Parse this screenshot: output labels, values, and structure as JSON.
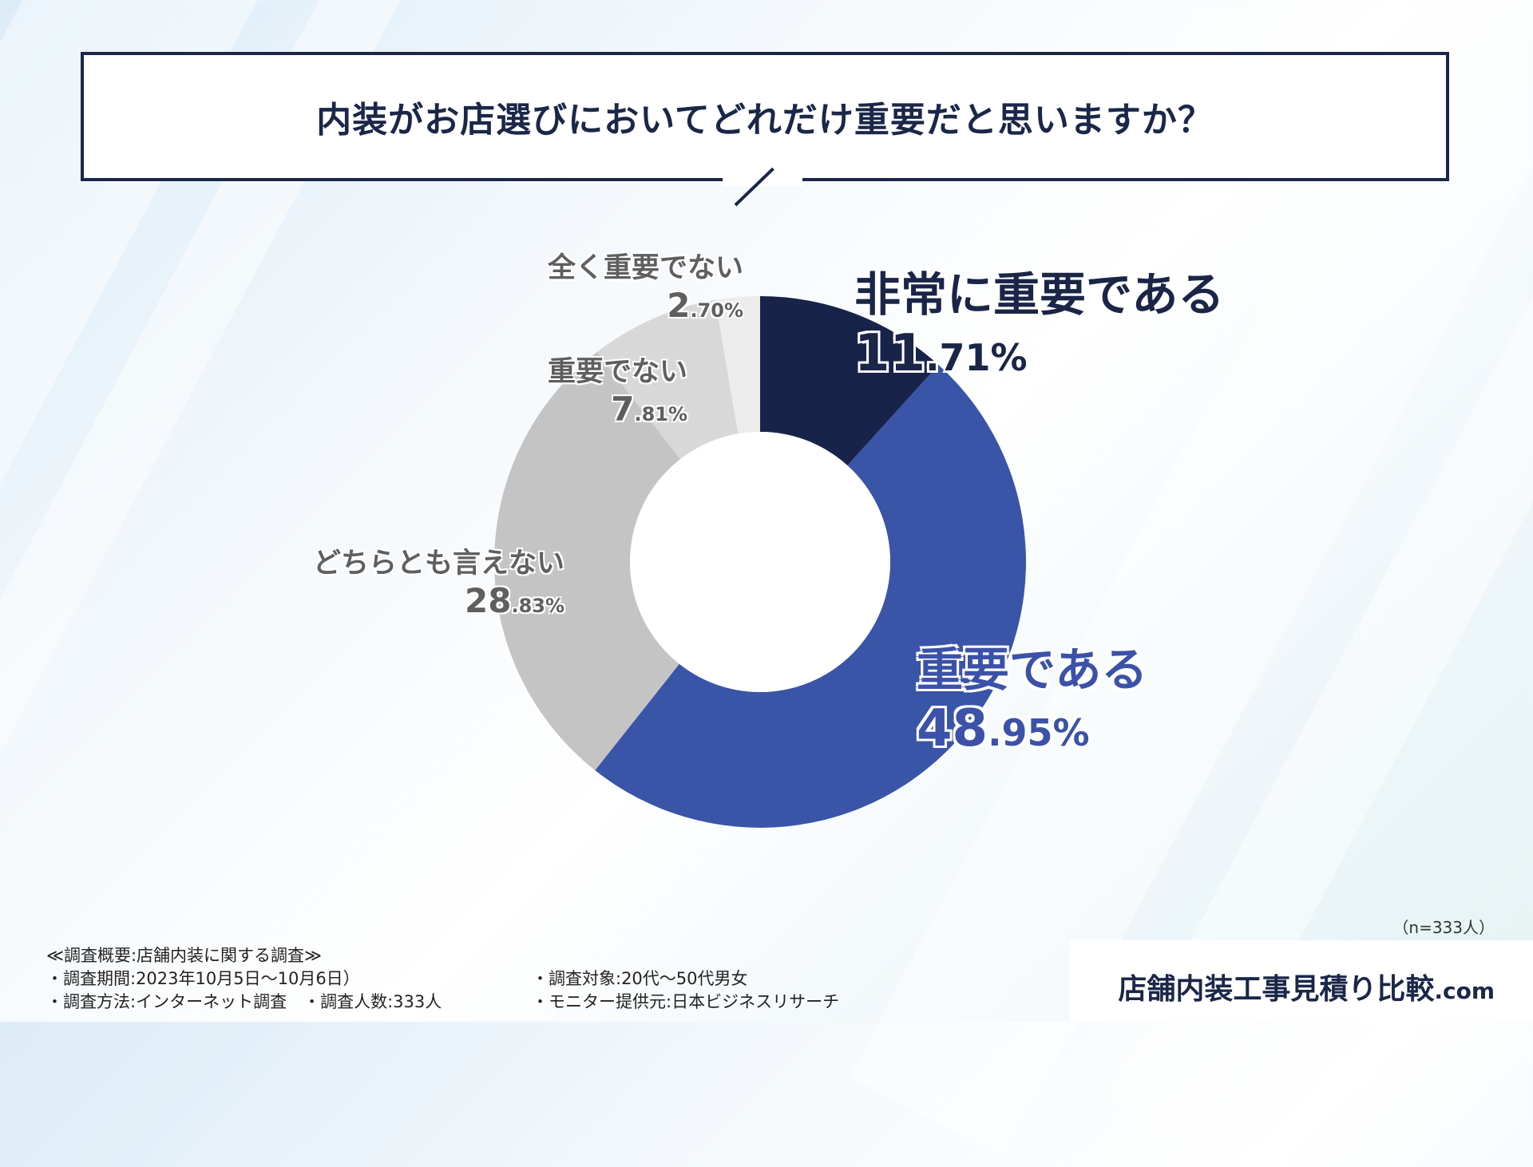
{
  "header": {
    "question": "内装がお店選びにおいてどれだけ重要だと思いますか？"
  },
  "chart_data": {
    "type": "pie",
    "title": "内装がお店選びにおいてどれだけ重要だと思いますか？",
    "categories": [
      "非常に重要である",
      "重要である",
      "どちらとも言えない",
      "重要でない",
      "全く重要でない"
    ],
    "values": [
      11.71,
      48.95,
      28.83,
      7.81,
      2.7
    ],
    "colors": [
      "#18234a",
      "#3a54a8",
      "#c4c4c4",
      "#d8d8d8",
      "#ececec"
    ],
    "donut": true,
    "legend": "none"
  },
  "labels": {
    "very_important": {
      "name": "非常に重要である",
      "int": "11",
      "dec": ".71%"
    },
    "important": {
      "name": "重要である",
      "int": "48",
      "dec": ".95%"
    },
    "neutral": {
      "name": "どちらとも言えない",
      "int": "28",
      "dec": ".83%"
    },
    "not_important": {
      "name": "重要でない",
      "int": "7",
      "dec": ".81%"
    },
    "not_at_all": {
      "name": "全く重要でない",
      "int": "2",
      "dec": ".70%"
    }
  },
  "sample": "（n=333人）",
  "survey": {
    "heading": "≪調査概要:店舗内装に関する調査≫",
    "period": "・調査期間:2023年10月5日〜10月6日）",
    "method": "・調査方法:インターネット調査　・調査人数:333人",
    "target": "・調査対象:20代〜50代男女",
    "provider": "・モニター提供元:日本ビジネスリサーチ"
  },
  "brand": {
    "main": "店舗内装工事見積り比較",
    "suffix": ".com"
  }
}
